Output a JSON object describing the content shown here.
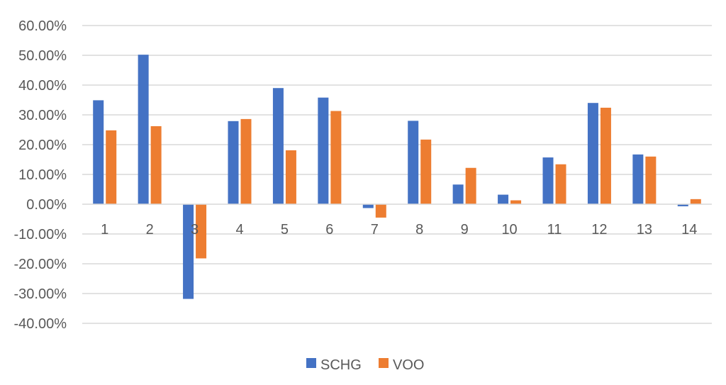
{
  "chart_data": {
    "type": "bar",
    "title": "",
    "xlabel": "",
    "ylabel": "",
    "categories": [
      "1",
      "2",
      "3",
      "4",
      "5",
      "6",
      "7",
      "8",
      "9",
      "10",
      "11",
      "12",
      "13",
      "14"
    ],
    "series": [
      {
        "name": "SCHG",
        "color": "#4472C4",
        "values": [
          0.349,
          0.502,
          -0.318,
          0.279,
          0.39,
          0.358,
          -0.013,
          0.28,
          0.066,
          0.032,
          0.157,
          0.34,
          0.167,
          -0.007
        ]
      },
      {
        "name": "VOO",
        "color": "#ED7D31",
        "values": [
          0.248,
          0.262,
          -0.182,
          0.286,
          0.181,
          0.313,
          -0.045,
          0.217,
          0.122,
          0.013,
          0.134,
          0.324,
          0.16,
          0.017
        ]
      }
    ],
    "ylim": [
      -0.4,
      0.6
    ],
    "yticks": [
      0.6,
      0.5,
      0.4,
      0.3,
      0.2,
      0.1,
      0.0,
      -0.1,
      -0.2,
      -0.3,
      -0.4
    ],
    "ytick_labels": [
      "60.00%",
      "50.00%",
      "40.00%",
      "30.00%",
      "20.00%",
      "10.00%",
      "0.00%",
      "-10.00%",
      "-20.00%",
      "-30.00%",
      "-40.00%"
    ],
    "grid": true,
    "legend_position": "bottom",
    "gridline_color": "#D9D9D9",
    "text_color": "#595959"
  }
}
